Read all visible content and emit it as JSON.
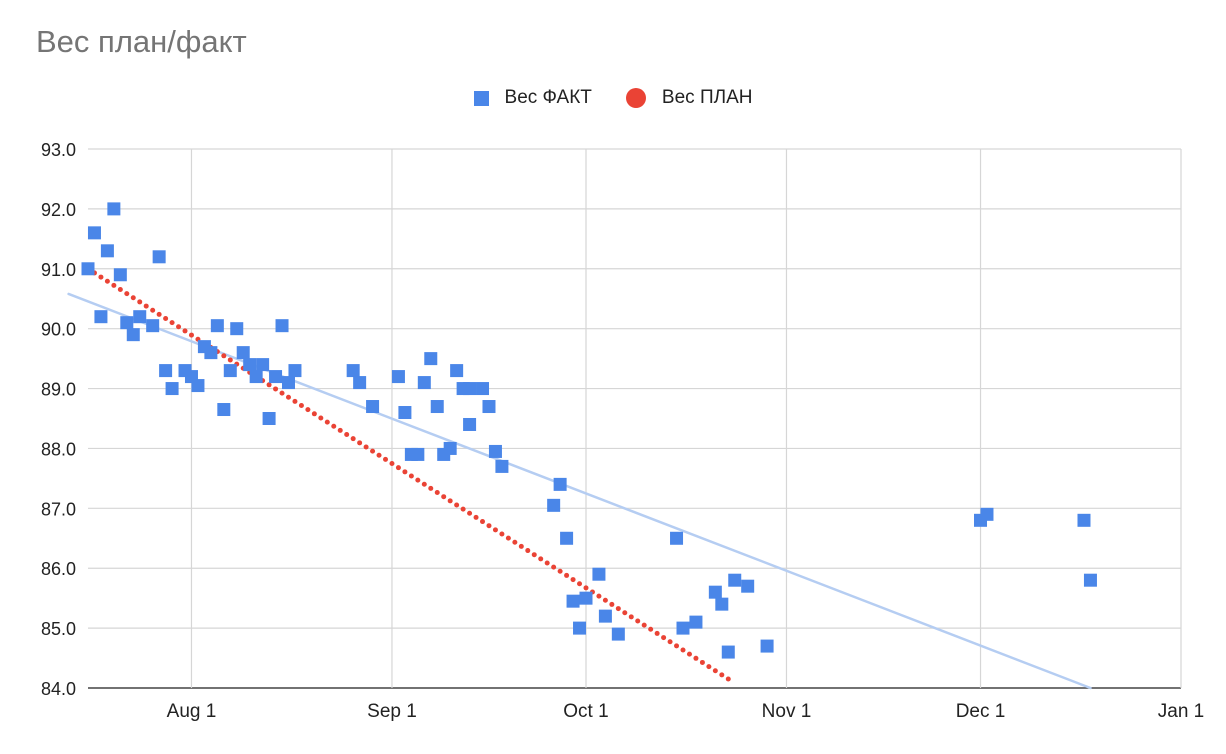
{
  "chart_data": {
    "type": "scatter",
    "title": "Вес план/факт",
    "xlabel": "",
    "ylabel": "",
    "grid": true,
    "legend_position": "top",
    "x_ticks": [
      {
        "date": "2023-08-01",
        "label": "Aug 1"
      },
      {
        "date": "2023-09-01",
        "label": "Sep 1"
      },
      {
        "date": "2023-10-01",
        "label": "Oct 1"
      },
      {
        "date": "2023-11-01",
        "label": "Nov 1"
      },
      {
        "date": "2023-12-01",
        "label": "Dec 1"
      },
      {
        "date": "2024-01-01",
        "label": "Jan 1"
      }
    ],
    "xlim": [
      "2023-07-16",
      "2024-01-01"
    ],
    "y_ticks": [
      "84.0",
      "85.0",
      "86.0",
      "87.0",
      "88.0",
      "89.0",
      "90.0",
      "91.0",
      "92.0",
      "93.0"
    ],
    "ylim": [
      84,
      93
    ],
    "series": [
      {
        "name": "Вес ФАКТ",
        "color": "#4a86e8",
        "marker": "square",
        "points": [
          [
            "2023-07-16",
            91.0
          ],
          [
            "2023-07-17",
            91.6
          ],
          [
            "2023-07-18",
            90.2
          ],
          [
            "2023-07-19",
            91.3
          ],
          [
            "2023-07-20",
            92.0
          ],
          [
            "2023-07-21",
            90.9
          ],
          [
            "2023-07-22",
            90.1
          ],
          [
            "2023-07-23",
            89.9
          ],
          [
            "2023-07-24",
            90.2
          ],
          [
            "2023-07-26",
            90.05
          ],
          [
            "2023-07-27",
            91.2
          ],
          [
            "2023-07-28",
            89.3
          ],
          [
            "2023-07-29",
            89.0
          ],
          [
            "2023-07-31",
            89.3
          ],
          [
            "2023-08-01",
            89.2
          ],
          [
            "2023-08-02",
            89.05
          ],
          [
            "2023-08-03",
            89.7
          ],
          [
            "2023-08-04",
            89.6
          ],
          [
            "2023-08-05",
            90.05
          ],
          [
            "2023-08-06",
            88.65
          ],
          [
            "2023-08-07",
            89.3
          ],
          [
            "2023-08-08",
            90.0
          ],
          [
            "2023-08-09",
            89.6
          ],
          [
            "2023-08-10",
            89.4
          ],
          [
            "2023-08-11",
            89.2
          ],
          [
            "2023-08-12",
            89.4
          ],
          [
            "2023-08-13",
            88.5
          ],
          [
            "2023-08-14",
            89.2
          ],
          [
            "2023-08-15",
            90.05
          ],
          [
            "2023-08-16",
            89.1
          ],
          [
            "2023-08-17",
            89.3
          ],
          [
            "2023-08-26",
            89.3
          ],
          [
            "2023-08-27",
            89.1
          ],
          [
            "2023-08-29",
            88.7
          ],
          [
            "2023-09-02",
            89.2
          ],
          [
            "2023-09-03",
            88.6
          ],
          [
            "2023-09-04",
            87.9
          ],
          [
            "2023-09-05",
            87.9
          ],
          [
            "2023-09-06",
            89.1
          ],
          [
            "2023-09-07",
            89.5
          ],
          [
            "2023-09-08",
            88.7
          ],
          [
            "2023-09-09",
            87.9
          ],
          [
            "2023-09-10",
            88.0
          ],
          [
            "2023-09-11",
            89.3
          ],
          [
            "2023-09-12",
            89.0
          ],
          [
            "2023-09-13",
            88.4
          ],
          [
            "2023-09-13",
            89.0
          ],
          [
            "2023-09-15",
            89.0
          ],
          [
            "2023-09-16",
            88.7
          ],
          [
            "2023-09-17",
            87.95
          ],
          [
            "2023-09-18",
            87.7
          ],
          [
            "2023-09-26",
            87.05
          ],
          [
            "2023-09-27",
            87.4
          ],
          [
            "2023-09-28",
            86.5
          ],
          [
            "2023-09-29",
            85.45
          ],
          [
            "2023-09-30",
            85.0
          ],
          [
            "2023-10-01",
            85.5
          ],
          [
            "2023-10-03",
            85.9
          ],
          [
            "2023-10-04",
            85.2
          ],
          [
            "2023-10-06",
            84.9
          ],
          [
            "2023-10-15",
            86.5
          ],
          [
            "2023-10-16",
            85.0
          ],
          [
            "2023-10-18",
            85.1
          ],
          [
            "2023-10-21",
            85.6
          ],
          [
            "2023-10-22",
            85.4
          ],
          [
            "2023-10-23",
            84.6
          ],
          [
            "2023-10-24",
            85.8
          ],
          [
            "2023-10-26",
            85.7
          ],
          [
            "2023-10-29",
            84.7
          ],
          [
            "2023-12-01",
            86.8
          ],
          [
            "2023-12-02",
            86.9
          ],
          [
            "2023-12-17",
            86.8
          ],
          [
            "2023-12-18",
            85.8
          ]
        ]
      },
      {
        "name": "Вес ПЛАН",
        "color": "#ea4335",
        "marker": "circle",
        "points_from": [
          "2023-07-16",
          91.0
        ],
        "points_to": [
          "2023-10-23",
          84.15
        ],
        "step_days": 1
      }
    ],
    "trendline": {
      "color": "#b5cdf2",
      "from": [
        "2023-07-13",
        90.58
      ],
      "to": [
        "2023-12-18",
        84.0
      ]
    }
  }
}
